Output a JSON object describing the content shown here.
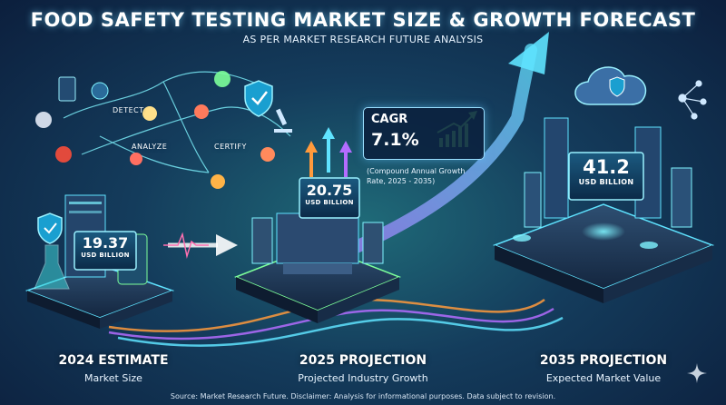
{
  "header": {
    "title": "FOOD SAFETY TESTING MARKET SIZE & GROWTH FORECAST",
    "subtitle": "AS PER MARKET RESEARCH FUTURE ANALYSIS"
  },
  "flow_steps": [
    "DETECT",
    "ANALYZE",
    "CERTIFY"
  ],
  "cagr": {
    "label": "CAGR",
    "value": "7.1%",
    "note": "(Compound Annual Growth Rate, 2025 - 2035)"
  },
  "chart_data": {
    "type": "bar",
    "categories": [
      "2024 ESTIMATE",
      "2025 PROJECTION",
      "2035 PROJECTION"
    ],
    "subcategories": [
      "Market Size",
      "Projected Industry Growth",
      "Expected Market Value"
    ],
    "series": [
      {
        "values": [
          19.37,
          20.75,
          41.2
        ]
      }
    ],
    "value_labels": [
      "19.37",
      "20.75",
      "41.2"
    ],
    "unit": "USD BILLION",
    "title": "FOOD SAFETY TESTING MARKET SIZE & GROWTH FORECAST"
  },
  "footer": {
    "source": "Source: Market Research Future. Disclaimer: Analysis for informational purposes. Data subject to revision."
  },
  "colors": {
    "background": "#143c5c",
    "accent_cyan": "#5fe3ff",
    "accent_purple": "#b46cff",
    "accent_orange": "#ff9a3c",
    "accent_green": "#7dff9a"
  }
}
